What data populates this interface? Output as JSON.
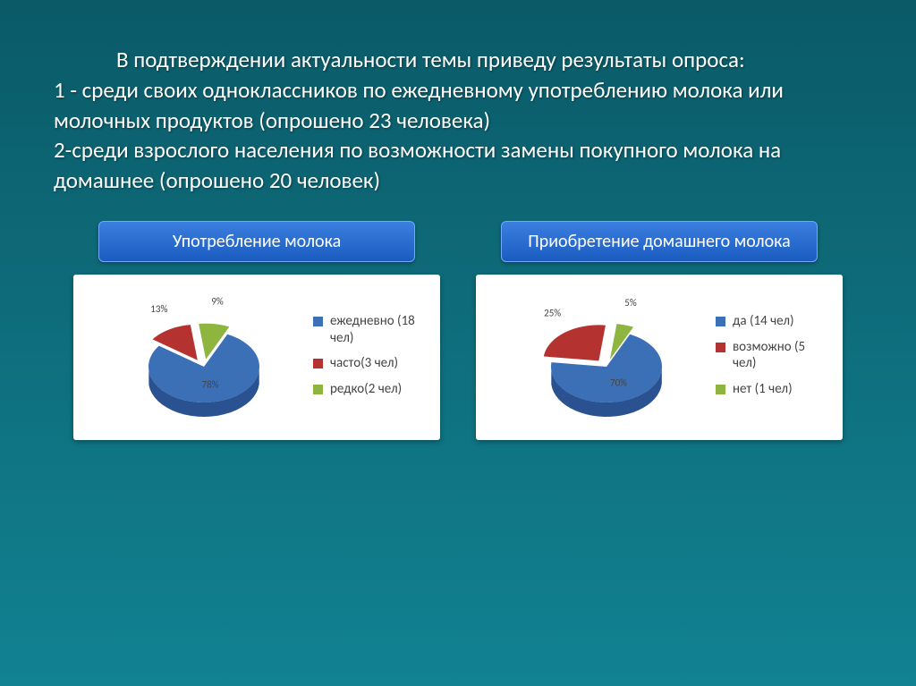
{
  "intro": {
    "line1": "В подтверждении актуальности темы приведу результаты опроса:",
    "line2": "1 - среди своих одноклассников по ежедневному употреблению молока или молочных продуктов (опрошено 23 человека)",
    "line3": "2-среди взрослого населения по возможности замены покупного молока на домашнее (опрошено 20 человек)"
  },
  "chart1": {
    "type": "pie",
    "title": "Употребление молока",
    "background_color": "#ffffff",
    "label_fontsize": 15,
    "pct_fontsize": 11,
    "slices": [
      {
        "label": "ежедневно (18 чел)",
        "value": 78,
        "pct_text": "78%",
        "color": "#3b6fb6",
        "color_dark": "#2a5190",
        "exploded": false
      },
      {
        "label": "часто(3 чел)",
        "value": 13,
        "pct_text": "13%",
        "color": "#b43331",
        "color_dark": "#8a2624",
        "exploded": true
      },
      {
        "label": "редко(2 чел)",
        "value": 9,
        "pct_text": "9%",
        "color": "#8fb541",
        "color_dark": "#6c8a30",
        "exploded": true
      }
    ]
  },
  "chart2": {
    "type": "pie",
    "title": "Приобретение домашнего молока",
    "background_color": "#ffffff",
    "label_fontsize": 15,
    "pct_fontsize": 11,
    "slices": [
      {
        "label": "да (14 чел)",
        "value": 70,
        "pct_text": "70%",
        "color": "#3b6fb6",
        "color_dark": "#2a5190",
        "exploded": false
      },
      {
        "label": "возможно (5 чел)",
        "value": 25,
        "pct_text": "25%",
        "color": "#b43331",
        "color_dark": "#8a2624",
        "exploded": true
      },
      {
        "label": "нет (1 чел)",
        "value": 5,
        "pct_text": "5%",
        "color": "#8fb541",
        "color_dark": "#6c8a30",
        "exploded": true
      }
    ]
  }
}
